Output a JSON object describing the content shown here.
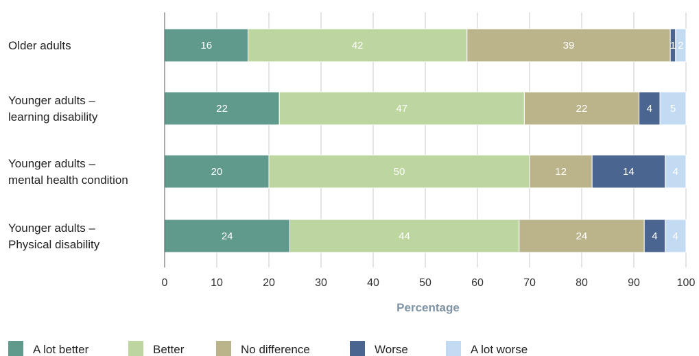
{
  "chart_data": {
    "type": "bar",
    "orientation": "horizontal",
    "stacked": true,
    "categories": [
      [
        "Older adults"
      ],
      [
        "Younger adults –",
        "learning disability"
      ],
      [
        "Younger adults –",
        "mental health condition"
      ],
      [
        "Younger adults –",
        "Physical disability"
      ]
    ],
    "series": [
      {
        "name": "A lot better",
        "color": "#5f9a8c",
        "values": [
          16,
          22,
          20,
          24
        ]
      },
      {
        "name": "Better",
        "color": "#bdd6a0",
        "values": [
          42,
          47,
          50,
          44
        ]
      },
      {
        "name": "No difference",
        "color": "#bbb48b",
        "values": [
          39,
          22,
          12,
          24
        ]
      },
      {
        "name": "Worse",
        "color": "#4a6590",
        "values": [
          1,
          4,
          14,
          4
        ]
      },
      {
        "name": "A lot worse",
        "color": "#c3dbf2",
        "values": [
          2,
          5,
          4,
          4
        ]
      }
    ],
    "xlabel": "Percentage",
    "xlabel_color": "#7f93a7",
    "xlim": [
      0,
      100
    ],
    "xticks": [
      0,
      10,
      20,
      30,
      40,
      50,
      60,
      70,
      80,
      90,
      100
    ],
    "grid": true,
    "legend_position": "bottom"
  }
}
